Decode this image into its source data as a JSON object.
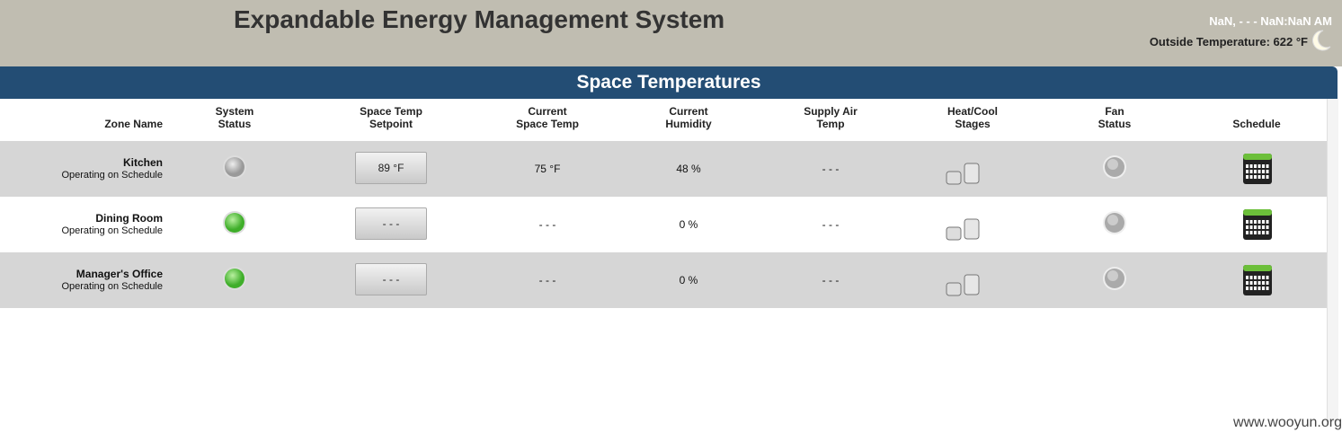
{
  "header": {
    "title": "Expandable Energy Management System",
    "datetime": "NaN, - - - NaN:NaN AM",
    "outside_temperature": "Outside Temperature: 622 °F"
  },
  "panel": {
    "title": "Space Temperatures",
    "columns": [
      [
        "Zone Name"
      ],
      [
        "System",
        "Status"
      ],
      [
        "Space Temp",
        "Setpoint"
      ],
      [
        "Current",
        "Space Temp"
      ],
      [
        "Current",
        "Humidity"
      ],
      [
        "Supply Air",
        "Temp"
      ],
      [
        "Heat/Cool",
        "Stages"
      ],
      [
        "Fan",
        "Status"
      ],
      [
        "Schedule"
      ]
    ],
    "rows": [
      {
        "zone": "Kitchen",
        "status": "Operating on Schedule",
        "setpoint": "89 °F",
        "space_temp": "75 °F",
        "humidity": "48 %",
        "supply_air": "- - -"
      },
      {
        "zone": "Dining Room",
        "status": "Operating on Schedule",
        "setpoint": "- - -",
        "space_temp": "- - -",
        "humidity": "0 %",
        "supply_air": "- - -"
      },
      {
        "zone": "Manager's Office",
        "status": "Operating on Schedule",
        "setpoint": "- - -",
        "space_temp": "- - -",
        "humidity": "0 %",
        "supply_air": "- - -"
      }
    ]
  },
  "watermark": "www.wooyun.org"
}
